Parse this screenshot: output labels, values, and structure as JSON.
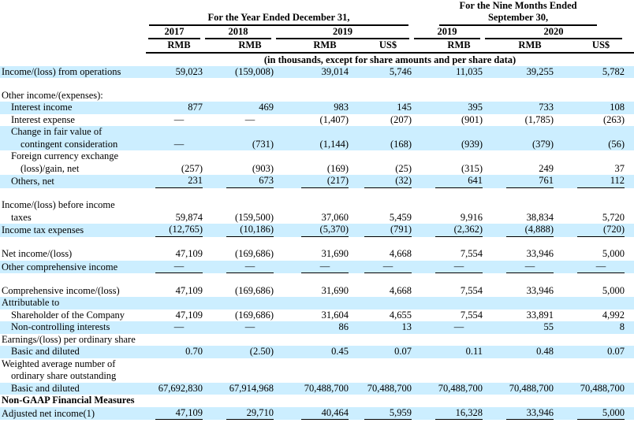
{
  "accent_color": "#CCEEFF",
  "table": {
    "col_groups": [
      {
        "title": "For the Year Ended December 31,",
        "span": 4
      },
      {
        "title": "For the Nine Months Ended September 30,",
        "span": 3
      }
    ],
    "years": [
      {
        "label": "2017",
        "span": 1
      },
      {
        "label": "2018",
        "span": 1
      },
      {
        "label": "2019",
        "span": 2
      },
      {
        "label": "2019",
        "span": 1
      },
      {
        "label": "2020",
        "span": 2
      }
    ],
    "currencies": [
      "RMB",
      "RMB",
      "RMB",
      "US$",
      "RMB",
      "RMB",
      "US$"
    ],
    "units_note": "(in thousands, except for share amounts and per share data)",
    "rows": [
      {
        "label": "Income/(loss) from operations",
        "indent": 0,
        "shaded": true,
        "values": [
          "59,023",
          "(159,008)",
          "39,014",
          "5,746",
          "11,035",
          "39,255",
          "5,782"
        ]
      },
      {
        "spacer": true
      },
      {
        "label": "Other income/(expenses):",
        "indent": 0,
        "values": []
      },
      {
        "label": "Interest income",
        "indent": 1,
        "shaded": true,
        "values": [
          "877",
          "469",
          "983",
          "145",
          "395",
          "733",
          "108"
        ]
      },
      {
        "label": "Interest expense",
        "indent": 1,
        "values": [
          "—",
          "—",
          "(1,407)",
          "(207)",
          "(901)",
          "(1,785)",
          "(263)"
        ]
      },
      {
        "lines": [
          "Change in fair value of",
          "contingent consideration"
        ],
        "indent": 1,
        "shaded": true,
        "values": [
          "—",
          "(731)",
          "(1,144)",
          "(168)",
          "(939)",
          "(379)",
          "(56)"
        ]
      },
      {
        "lines": [
          "Foreign currency exchange",
          "(loss)/gain, net"
        ],
        "indent": 1,
        "values": [
          "(257)",
          "(903)",
          "(169)",
          "(25)",
          "(315)",
          "249",
          "37"
        ]
      },
      {
        "label": "Others, net",
        "indent": 1,
        "shaded": true,
        "underline": true,
        "values": [
          "231",
          "673",
          "(217)",
          "(32)",
          "641",
          "761",
          "112"
        ]
      },
      {
        "spacer": true
      },
      {
        "lines": [
          "Income/(loss) before income",
          "taxes"
        ],
        "indent": 0,
        "values": [
          "59,874",
          "(159,500)",
          "37,060",
          "5,459",
          "9,916",
          "38,834",
          "5,720"
        ]
      },
      {
        "label": "Income tax expenses",
        "indent": 0,
        "shaded": true,
        "underline": true,
        "values": [
          "(12,765)",
          "(10,186)",
          "(5,370)",
          "(791)",
          "(2,362)",
          "(4,888)",
          "(720)"
        ]
      },
      {
        "spacer": true
      },
      {
        "label": "Net income/(loss)",
        "indent": 0,
        "values": [
          "47,109",
          "(169,686)",
          "31,690",
          "4,668",
          "7,554",
          "33,946",
          "5,000"
        ]
      },
      {
        "label": "Other comprehensive income",
        "indent": 0,
        "shaded": true,
        "underline": true,
        "values": [
          "—",
          "—",
          "—",
          "—",
          "—",
          "—",
          "—"
        ]
      },
      {
        "spacer": true
      },
      {
        "label": "Comprehensive income/(loss)",
        "indent": 0,
        "values": [
          "47,109",
          "(169,686)",
          "31,690",
          "4,668",
          "7,554",
          "33,946",
          "5,000"
        ]
      },
      {
        "label": "Attributable to",
        "indent": 0,
        "shaded": true,
        "values": []
      },
      {
        "label": "Shareholder of the Company",
        "indent": 1,
        "values": [
          "47,109",
          "(169,686)",
          "31,604",
          "4,655",
          "7,554",
          "33,891",
          "4,992"
        ]
      },
      {
        "label": "Non-controlling interests",
        "indent": 1,
        "shaded": true,
        "values": [
          "—",
          "—",
          "86",
          "13",
          "—",
          "55",
          "8"
        ]
      },
      {
        "label": "Earnings/(loss) per ordinary share",
        "indent": 0,
        "values": []
      },
      {
        "label": "Basic and diluted",
        "indent": 1,
        "shaded": true,
        "values": [
          "0.70",
          "(2.50)",
          "0.45",
          "0.07",
          "0.11",
          "0.48",
          "0.07"
        ]
      },
      {
        "lines": [
          "Weighted average number of",
          "ordinary share outstanding"
        ],
        "indent": 0,
        "values": []
      },
      {
        "label": "Basic and diluted",
        "indent": 1,
        "shaded": true,
        "values": [
          "67,692,830",
          "67,914,968",
          "70,488,700",
          "70,488,700",
          "70,488,700",
          "70,488,700",
          "70,488,700"
        ]
      },
      {
        "label": "Non-GAAP Financial Measures",
        "indent": 0,
        "bold": true,
        "values": []
      },
      {
        "label": "Adjusted net income(1)",
        "indent": 0,
        "shaded": true,
        "underline": true,
        "values": [
          "47,109",
          "29,710",
          "40,464",
          "5,959",
          "16,328",
          "33,946",
          "5,000"
        ]
      }
    ]
  }
}
